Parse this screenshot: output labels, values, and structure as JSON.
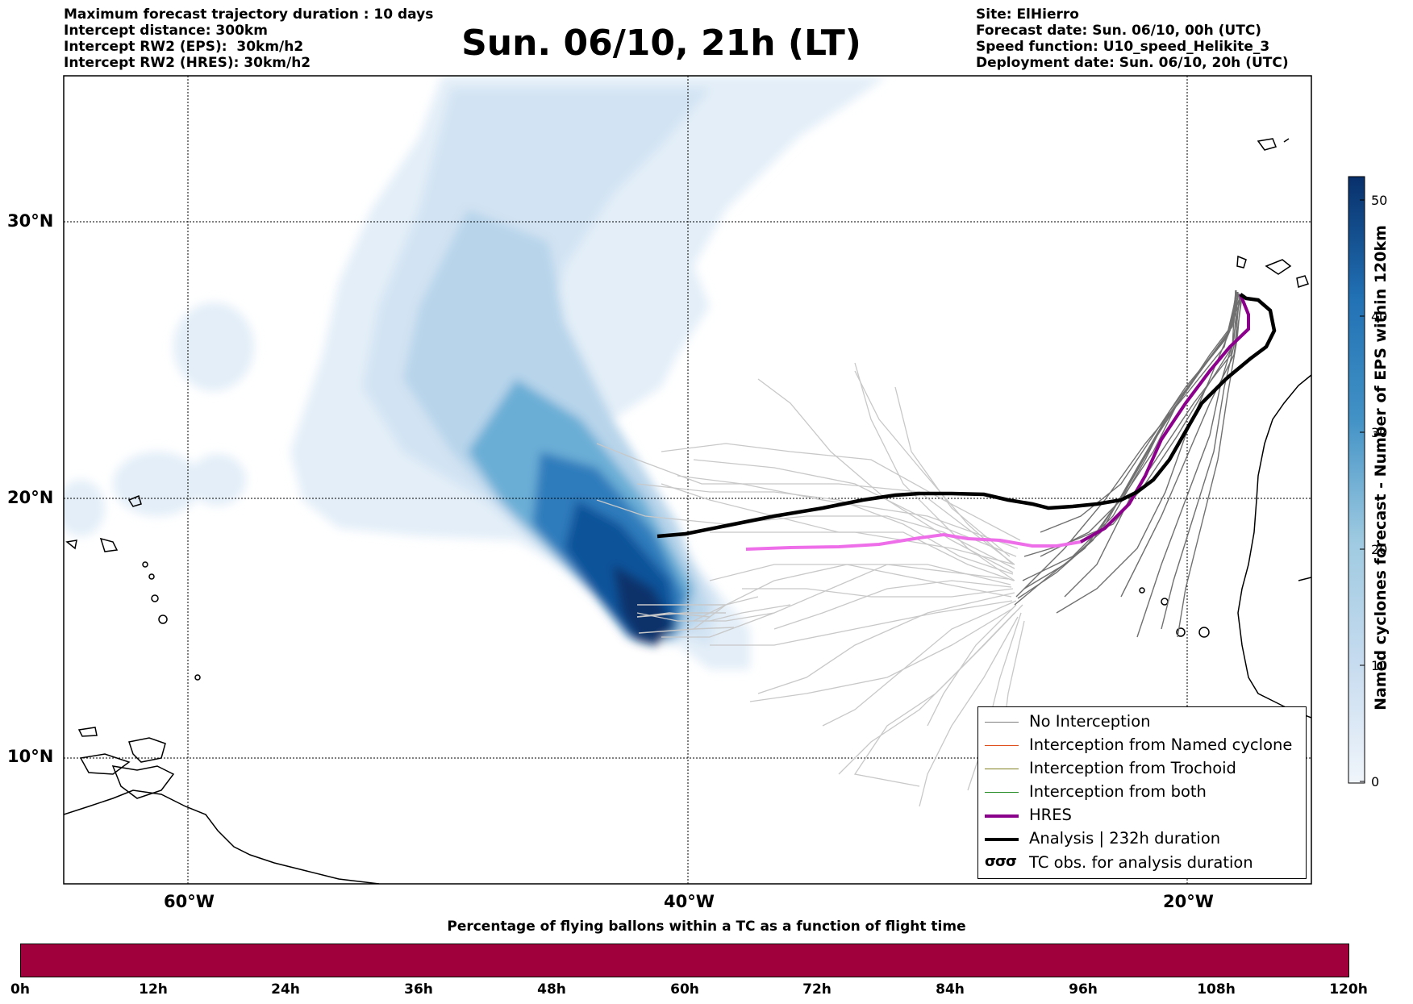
{
  "header_left": [
    "Maximum forecast trajectory duration : 10 days",
    "Intercept distance: 300km",
    "Intercept RW2 (EPS):  30km/h2",
    "Intercept RW2 (HRES): 30km/h2"
  ],
  "title": "Sun. 06/10, 21h (LT)",
  "header_right": [
    "Site: ElHierro",
    "Forecast date: Sun. 06/10, 00h (UTC)",
    "Speed function: U10_speed_Helikite_3",
    "Deployment date: Sun. 06/10, 20h (UTC)"
  ],
  "map": {
    "lat_labels": [
      "30°N",
      "20°N",
      "10°N"
    ],
    "lon_labels": [
      "60°W",
      "40°W",
      "20°W"
    ]
  },
  "legend": {
    "items": [
      {
        "label": "No Interception",
        "color": "#808080",
        "icon": "thin-line"
      },
      {
        "label": "Interception from Named cyclone",
        "color": "#e0501e",
        "icon": "thin-line"
      },
      {
        "label": "Interception from Trochoid",
        "color": "#808020",
        "icon": "thin-line"
      },
      {
        "label": "Interception from both",
        "color": "#228b22",
        "icon": "thin-line"
      },
      {
        "label": "HRES",
        "color": "#8b008b",
        "icon": "thick-line"
      },
      {
        "label": "Analysis | 232h duration",
        "color": "#000000",
        "icon": "thick-line"
      },
      {
        "label": "TC obs. for analysis duration",
        "color": "#000000",
        "icon": "cyclone-symbols"
      }
    ]
  },
  "colorbar": {
    "title": "Named cyclones forecast - Number of EPS within 120km",
    "ticks": [
      "0",
      "10",
      "20",
      "30",
      "40",
      "50"
    ],
    "color_low": "#f0f5fb",
    "color_high": "#08306b"
  },
  "bottom_bar": {
    "title": "Percentage of flying ballons within a TC as a function of flight time",
    "color": "#a0003c",
    "ticks": [
      "0h",
      "12h",
      "24h",
      "36h",
      "48h",
      "60h",
      "72h",
      "84h",
      "96h",
      "108h",
      "120h"
    ]
  }
}
